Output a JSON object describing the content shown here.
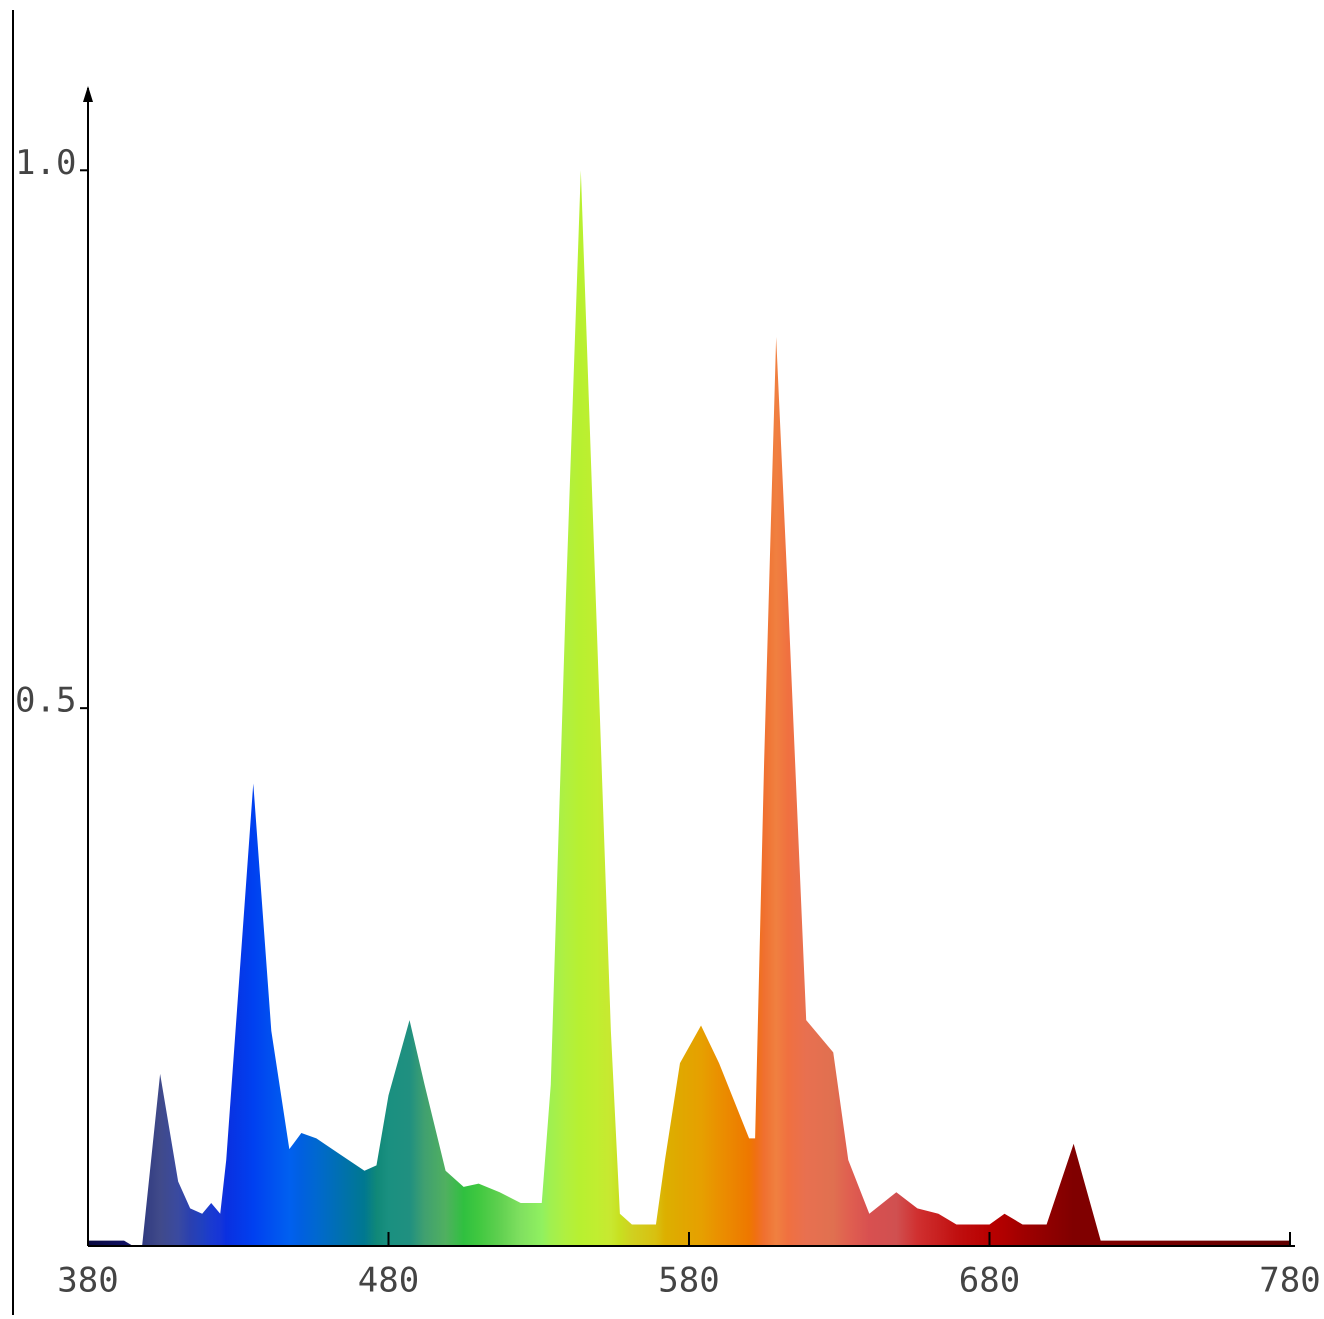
{
  "chart_data": {
    "type": "area",
    "x": [
      380,
      392,
      395,
      398,
      404,
      410,
      414,
      418,
      421,
      424,
      426,
      435,
      441,
      447,
      451,
      456,
      464,
      472,
      476,
      480,
      487,
      492,
      499,
      505,
      510,
      517,
      524,
      531,
      534,
      539,
      544,
      549,
      554,
      557,
      561,
      569,
      572,
      577,
      584,
      590,
      600,
      602,
      605,
      609,
      613,
      619,
      628,
      633,
      640,
      649,
      656,
      663,
      669,
      680,
      685,
      691,
      699,
      708,
      717,
      750,
      780
    ],
    "series": [
      {
        "values": [
          0.005,
          0.005,
          0,
          0,
          0.16,
          0.06,
          0.035,
          0.03,
          0.04,
          0.03,
          0.08,
          0.43,
          0.2,
          0.09,
          0.105,
          0.1,
          0.085,
          0.07,
          0.075,
          0.14,
          0.21,
          0.15,
          0.07,
          0.055,
          0.058,
          0.05,
          0.04,
          0.04,
          0.15,
          0.6,
          1.0,
          0.6,
          0.2,
          0.03,
          0.02,
          0.02,
          0.08,
          0.17,
          0.205,
          0.17,
          0.1,
          0.1,
          0.45,
          0.845,
          0.6,
          0.21,
          0.18,
          0.08,
          0.03,
          0.05,
          0.035,
          0.03,
          0.02,
          0.02,
          0.03,
          0.02,
          0.02,
          0.095,
          0.005,
          0.005,
          0.005
        ],
        "colors": [
          "#0a0a40",
          "#101060",
          "#202070",
          "#303a80",
          "#404a8a",
          "#3a4aa0",
          "#2a40b0",
          "#2040c0",
          "#1a3ad0",
          "#1535d8",
          "#0a30e0",
          "#0040f0",
          "#0050f0",
          "#0060f0",
          "#0060e0",
          "#0068d0",
          "#0070b0",
          "#007890",
          "#108878",
          "#1a9080",
          "#209080",
          "#40a070",
          "#50b060",
          "#30c040",
          "#40c840",
          "#60d050",
          "#80e060",
          "#90f060",
          "#a0f050",
          "#b0f040",
          "#b8f030",
          "#c0ee30",
          "#c8e830",
          "#c8e020",
          "#d0d020",
          "#d8c010",
          "#dcb000",
          "#e0a800",
          "#e6a000",
          "#ea9000",
          "#ee7800",
          "#f07010",
          "#f07030",
          "#f08040",
          "#f07040",
          "#e87050",
          "#e07050",
          "#e06050",
          "#d85050",
          "#d05050",
          "#d03030",
          "#c82020",
          "#c01010",
          "#b80000",
          "#b00000",
          "#a00000",
          "#900000",
          "#800000",
          "#800000",
          "#700000",
          "#600000"
        ]
      }
    ],
    "xlim": [
      380,
      780
    ],
    "xticks": [
      380,
      480,
      580,
      680,
      780
    ],
    "ylim": [
      0,
      1.07
    ],
    "yticks": [
      {
        "value": 0.5,
        "label": "0.5"
      },
      {
        "value": 1,
        "label": "1.0"
      }
    ]
  }
}
